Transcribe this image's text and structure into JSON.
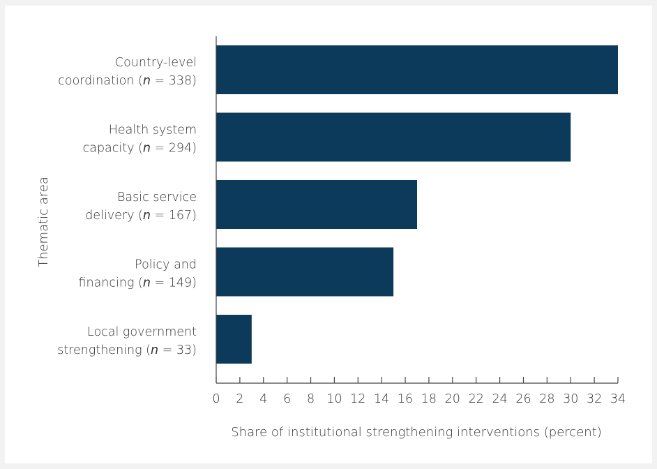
{
  "chart_data": {
    "type": "bar",
    "orientation": "horizontal",
    "xlabel": "Share of institutional strengthening interventions (percent)",
    "ylabel": "Thematic area",
    "xlim": [
      0,
      34
    ],
    "xticks": [
      0,
      2,
      4,
      6,
      8,
      10,
      12,
      14,
      16,
      18,
      20,
      22,
      24,
      26,
      28,
      30,
      32,
      34
    ],
    "grid": false,
    "colors": {
      "bar": "#0b3a5a",
      "axis": "#444444",
      "text": "#333333"
    },
    "categories": [
      {
        "line1": "Country-level",
        "line2_prefix": "coordination (",
        "n_label": "n",
        "n_value": "338"
      },
      {
        "line1": "Health system",
        "line2_prefix": "capacity (",
        "n_label": "n",
        "n_value": "294"
      },
      {
        "line1": "Basic service",
        "line2_prefix": "delivery (",
        "n_label": "n",
        "n_value": "167"
      },
      {
        "line1": "Policy and",
        "line2_prefix": "financing (",
        "n_label": "n",
        "n_value": "149"
      },
      {
        "line1": "Local government",
        "line2_prefix": "strengthening (",
        "n_label": "n",
        "n_value": "33"
      }
    ],
    "values": [
      34,
      30,
      17,
      15,
      3
    ]
  }
}
